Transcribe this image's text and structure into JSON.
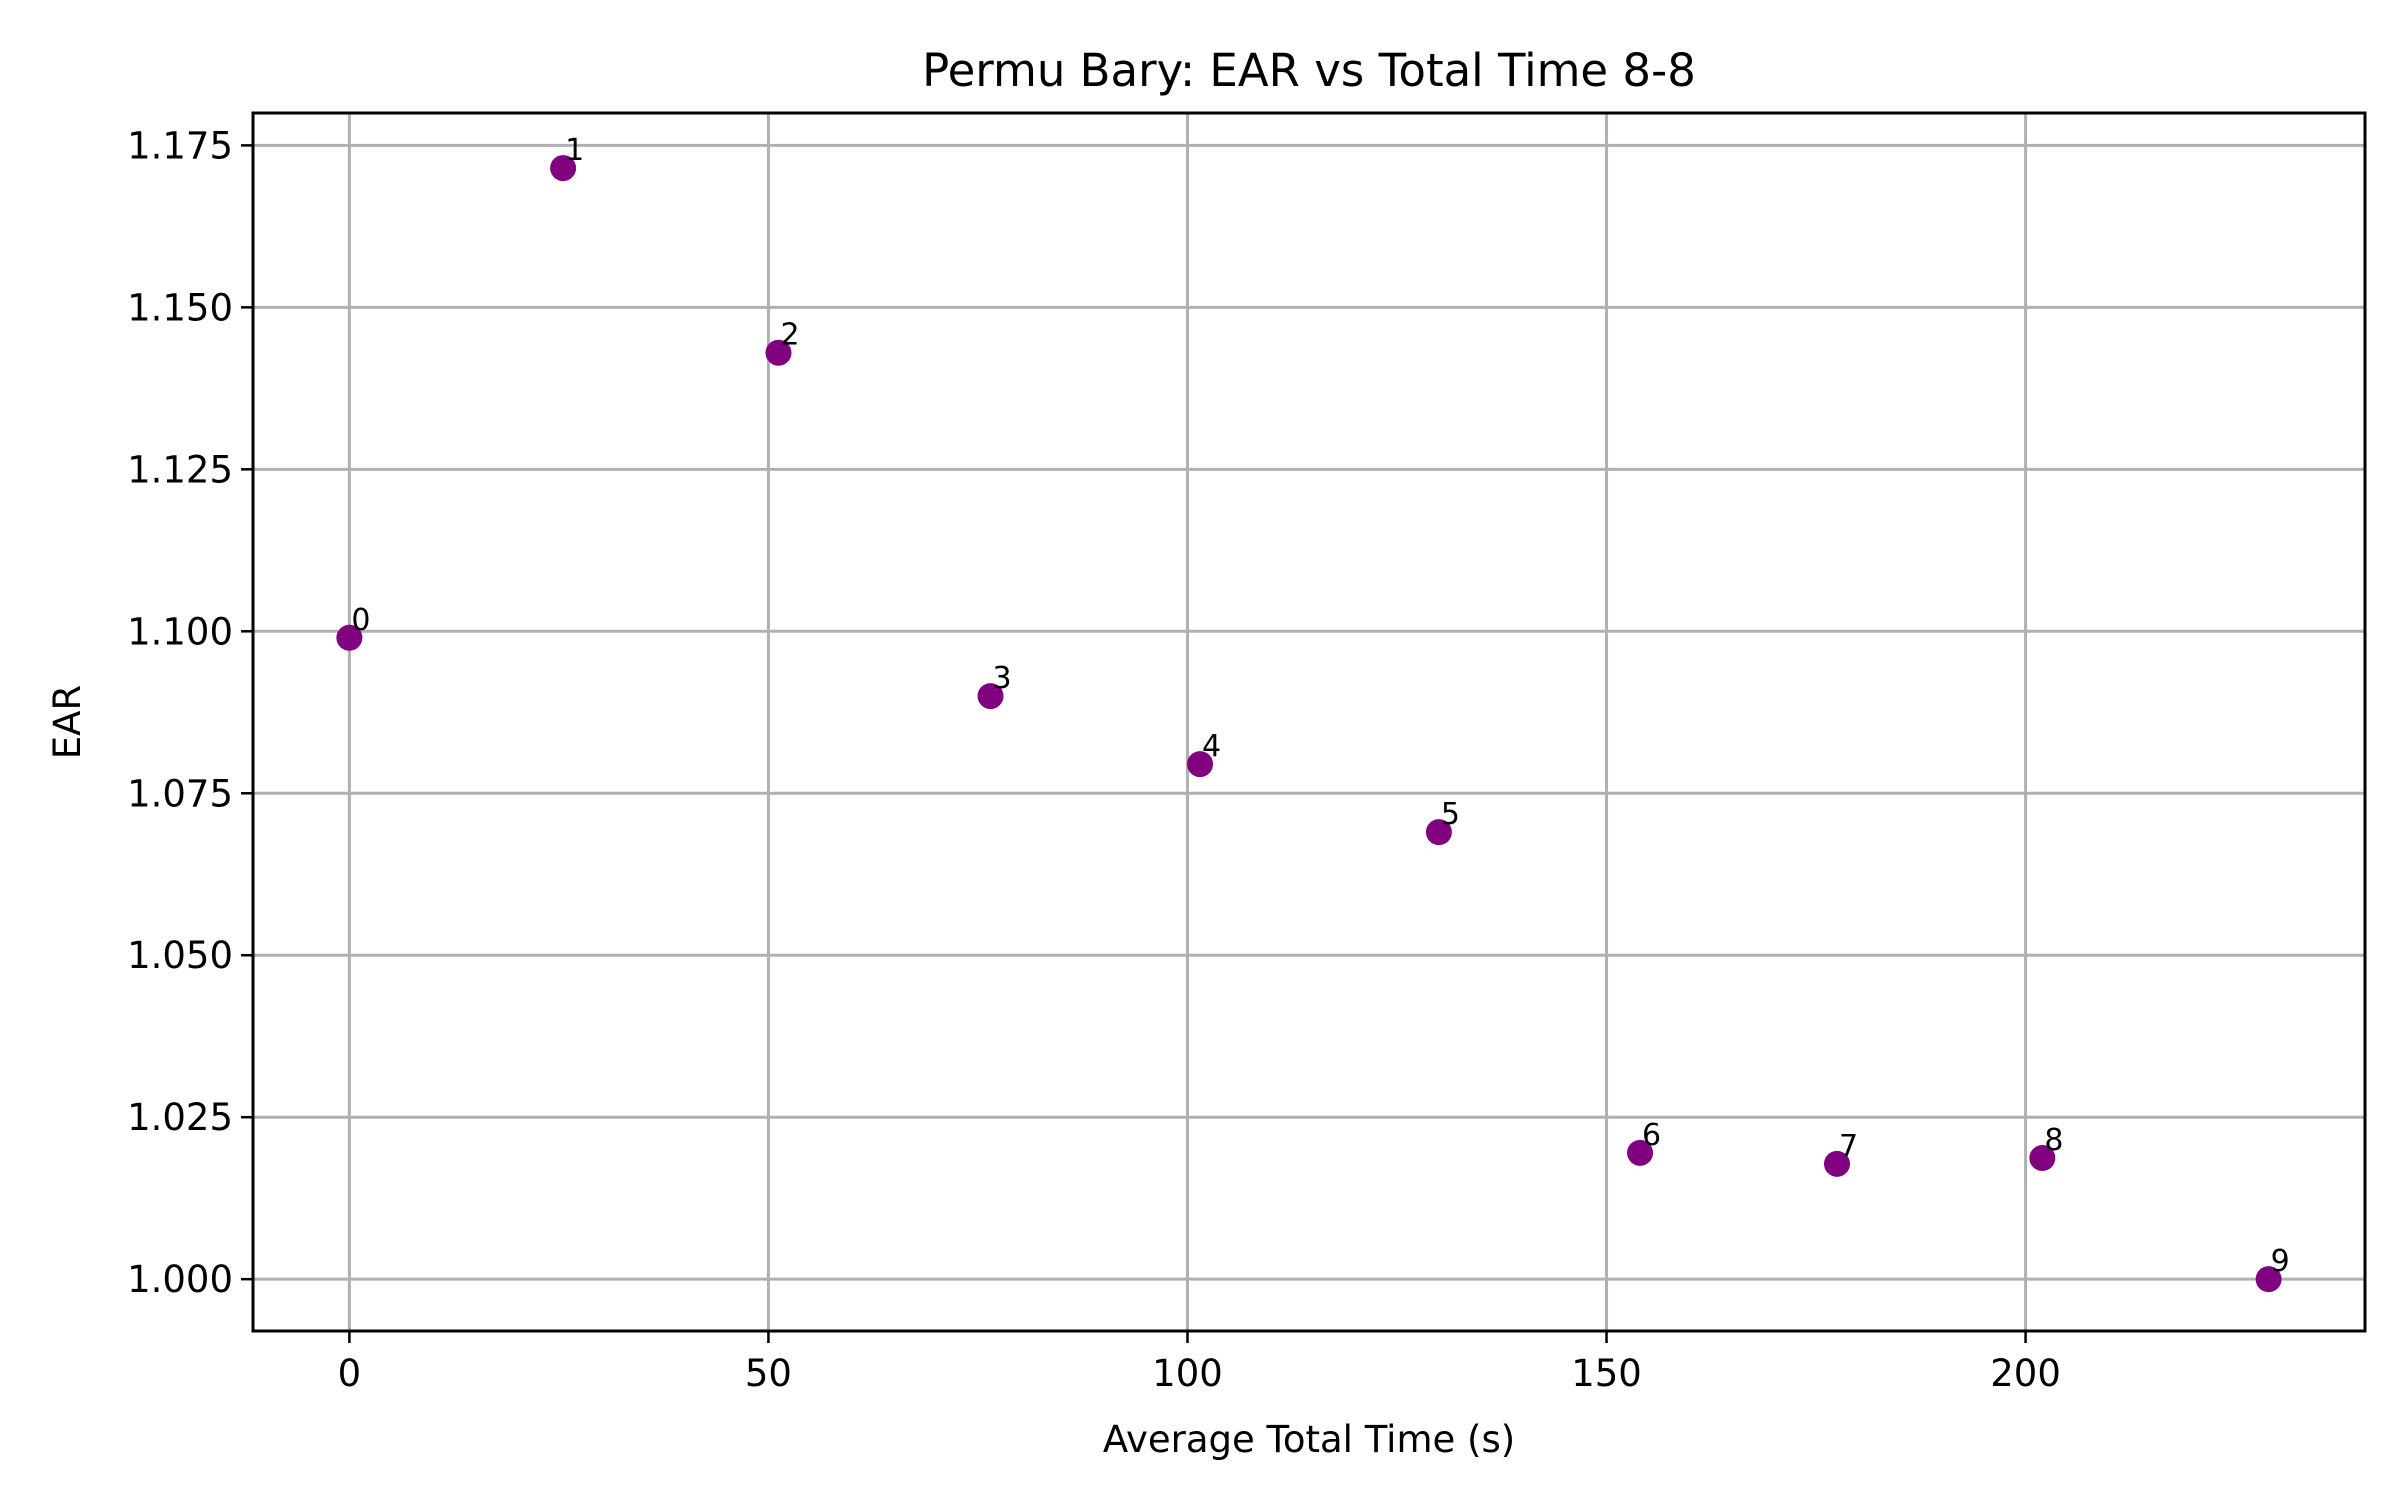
{
  "chart_data": {
    "type": "scatter",
    "title": "Permu Bary: EAR vs Total Time 8-8",
    "xlabel": "Average Total Time (s)",
    "ylabel": "EAR",
    "xlim": [
      -11.5,
      240.5
    ],
    "ylim": [
      0.992,
      1.18
    ],
    "grid": true,
    "marker_color": "#800080",
    "x_ticks": [
      0,
      50,
      100,
      150,
      200
    ],
    "x_tick_labels": [
      "0",
      "50",
      "100",
      "150",
      "200"
    ],
    "y_ticks": [
      1.0,
      1.025,
      1.05,
      1.075,
      1.1,
      1.125,
      1.15,
      1.175
    ],
    "y_tick_labels": [
      "1.000",
      "1.025",
      "1.050",
      "1.075",
      "1.100",
      "1.125",
      "1.150",
      "1.175"
    ],
    "points": [
      {
        "label": "0",
        "x": 0.0,
        "y": 1.099
      },
      {
        "label": "1",
        "x": 25.5,
        "y": 1.1715
      },
      {
        "label": "2",
        "x": 51.2,
        "y": 1.143
      },
      {
        "label": "3",
        "x": 76.5,
        "y": 1.09
      },
      {
        "label": "4",
        "x": 101.5,
        "y": 1.0795
      },
      {
        "label": "5",
        "x": 130.0,
        "y": 1.069
      },
      {
        "label": "6",
        "x": 154.0,
        "y": 1.0195
      },
      {
        "label": "7",
        "x": 177.5,
        "y": 1.0178
      },
      {
        "label": "8",
        "x": 202.0,
        "y": 1.0187
      },
      {
        "label": "9",
        "x": 229.0,
        "y": 1.0
      }
    ]
  }
}
